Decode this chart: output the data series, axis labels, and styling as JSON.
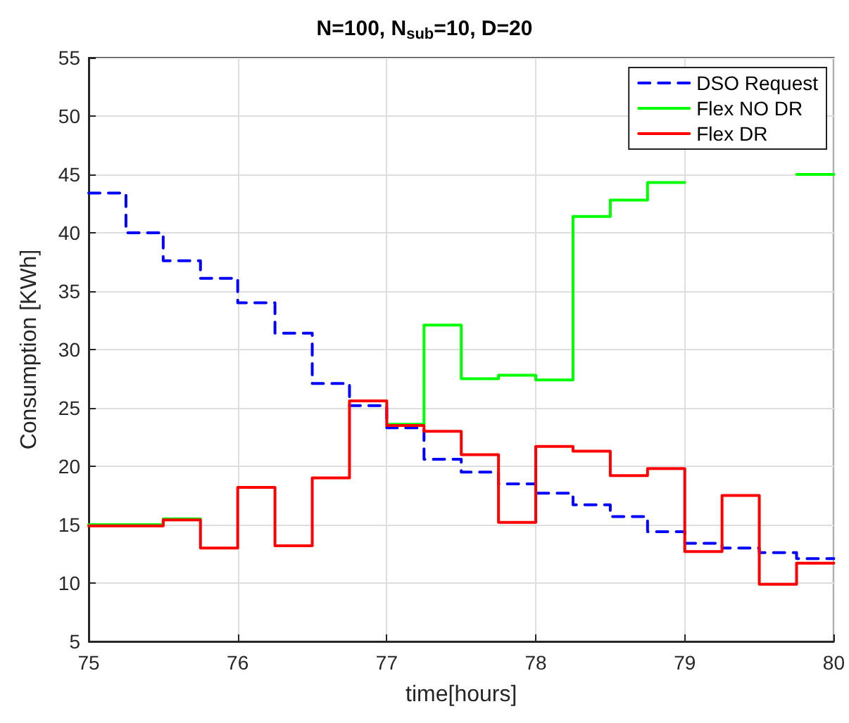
{
  "chart_data": {
    "type": "step",
    "title": "N=100, N$_{sub}$=10, D=20",
    "xlabel": "time[hours]",
    "ylabel": "Consumption [KWh]",
    "x": [
      75,
      75.25,
      75.5,
      75.75,
      76,
      76.25,
      76.5,
      76.75,
      77,
      77.25,
      77.5,
      77.75,
      78,
      78.25,
      78.5,
      78.75,
      79,
      79.25,
      79.5,
      79.75,
      80
    ],
    "series": [
      {
        "name": "DSO Request",
        "color": "#0000ff",
        "line_style": "dashed",
        "values": [
          43.4,
          40.0,
          37.6,
          36.1,
          34.0,
          31.4,
          27.1,
          25.2,
          23.3,
          20.6,
          19.5,
          18.5,
          17.7,
          16.7,
          15.7,
          14.4,
          13.4,
          13.0,
          12.6,
          12.1,
          12.1
        ]
      },
      {
        "name": "Flex NO DR",
        "color": "#00ff00",
        "line_style": "solid",
        "values": [
          15.0,
          15.0,
          15.5,
          null,
          null,
          null,
          null,
          null,
          23.6,
          32.1,
          27.5,
          27.8,
          27.4,
          41.4,
          42.8,
          44.3,
          null,
          null,
          null,
          45.0,
          45.0
        ]
      },
      {
        "name": "Flex DR",
        "color": "#ff0000",
        "line_style": "solid",
        "values": [
          14.9,
          14.9,
          15.4,
          13.0,
          18.2,
          13.2,
          19.0,
          25.6,
          23.5,
          23.0,
          21.0,
          15.2,
          21.7,
          21.3,
          19.2,
          19.8,
          12.7,
          17.5,
          9.9,
          11.7,
          11.7
        ]
      }
    ],
    "xlim": [
      75,
      80
    ],
    "xticks": [
      75,
      76,
      77,
      78,
      79,
      80
    ],
    "ylim": [
      5,
      55
    ],
    "yticks": [
      5,
      10,
      15,
      20,
      25,
      30,
      35,
      40,
      45,
      50,
      55
    ],
    "grid": true,
    "legend": "top right",
    "marker": "none"
  }
}
